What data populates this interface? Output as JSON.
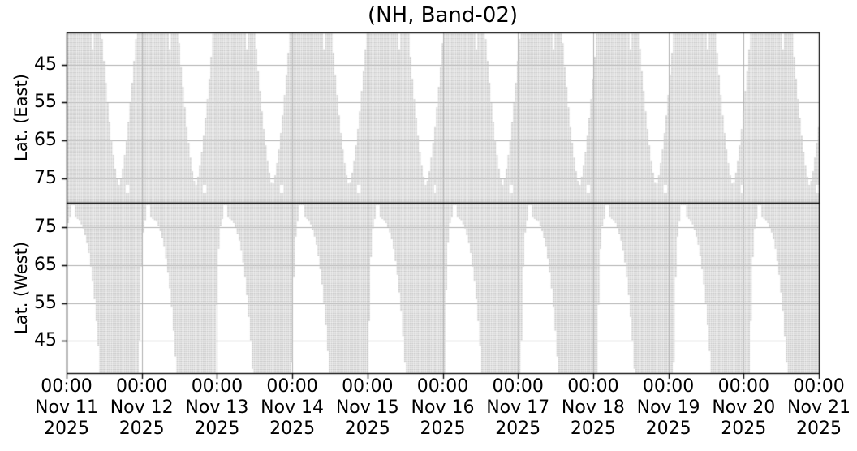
{
  "chart_data": {
    "type": "heatmap",
    "title": "(NH, Band-02)",
    "description": "Latitude coverage vs time for Northern Hemisphere, Band-02. Two stacked panels (East / West longitudes). Gray pixelated cells mark covered latitude/time bins; white regions are coverage gaps recurring roughly once per day from Nov 11 to Nov 21, 2025.",
    "x_axis": {
      "tick_labels": [
        [
          "00:00",
          "Nov 11",
          "2025"
        ],
        [
          "00:00",
          "Nov 12",
          "2025"
        ],
        [
          "00:00",
          "Nov 13",
          "2025"
        ],
        [
          "00:00",
          "Nov 14",
          "2025"
        ],
        [
          "00:00",
          "Nov 15",
          "2025"
        ],
        [
          "00:00",
          "Nov 16",
          "2025"
        ],
        [
          "00:00",
          "Nov 17",
          "2025"
        ],
        [
          "00:00",
          "Nov 18",
          "2025"
        ],
        [
          "00:00",
          "Nov 19",
          "2025"
        ],
        [
          "00:00",
          "Nov 20",
          "2025"
        ],
        [
          "00:00",
          "Nov 21",
          "2025"
        ]
      ],
      "range_days": [
        0,
        10
      ],
      "grid": true
    },
    "panels": [
      {
        "ylabel": "Lat. (East)",
        "yticks": [
          45,
          55,
          65,
          75
        ],
        "ylim": [
          36.5,
          81.5
        ],
        "latitude_increases_downward": true,
        "grid": true
      },
      {
        "ylabel": "Lat. (West)",
        "yticks": [
          75,
          65,
          55,
          45
        ],
        "ylim": [
          81.5,
          36.5
        ],
        "latitude_increases_downward": false,
        "grid": true
      }
    ],
    "coverage_model": {
      "cell_days": 0.025,
      "cell_lat": 0.36,
      "top_panel_gaps": {
        "comment": "White V-shaped gaps, widest at low latitude, closing near lat 77; centers in days since Nov 11 00:00",
        "centers_days": [
          0.7,
          1.72,
          2.74,
          3.76,
          4.78,
          5.8,
          6.82,
          7.84,
          8.86,
          9.88
        ],
        "half_width_max_days": 0.232,
        "width_power": 0.7,
        "gap_close_lat": 77.0,
        "lat_min": 36.5,
        "tip_spike_offset_days": 0.12,
        "tip_spike_half_width_days": 0.025,
        "tip_spike_lat_max": 79.0,
        "thin_line_offsets_days": [
          -0.345,
          0.205
        ],
        "thin_line_half_width_days": 0.0125,
        "thin_line_lat_max": 41.3
      },
      "bottom_panel_gaps": {
        "comment": "White blade-shaped gaps with rounded tips near lat 77.5, widening and leaning right toward low latitudes; centers in days since Nov 11 00:00",
        "centers_days": [
          0.08,
          1.095,
          2.11,
          3.125,
          4.14,
          5.155,
          6.17,
          7.185,
          8.2,
          9.215
        ],
        "tip_lat": 77.5,
        "lat_norm_span": 32.5,
        "left_coef_days": 0.12,
        "left_power": 0.25,
        "right_coef_days": 0.34,
        "right_power": 0.35,
        "tip_spike_half_width_days": 0.0275,
        "tip_spike_lat_max": 80.8
      }
    },
    "colors": {
      "covered_cell": "#c5c5c5",
      "cell_hairline": "#d9d9d9",
      "gridline": "#b0b0b0",
      "spine": "#000000",
      "background": "#ffffff",
      "text": "#000000"
    }
  }
}
